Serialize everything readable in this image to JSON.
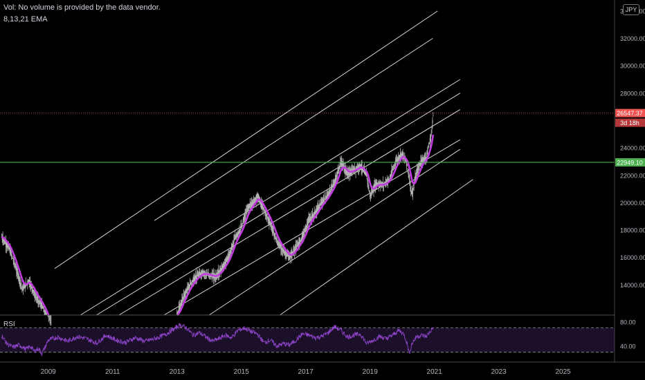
{
  "header": {
    "volume_note": "Vol: No volume is provided by the data vendor.",
    "ema_label": "8,13,21 EMA",
    "currency": "JPY"
  },
  "colors": {
    "price_candles": "#b4b4b4",
    "ema": "#c33ae0",
    "channel_lines": "#d8d8d8",
    "horizontal_line": "#4caf50",
    "current_price_tag": "#ef5350",
    "rsi_line": "#8e44c9",
    "rsi_band": "#1b0f29"
  },
  "chart_data": {
    "type": "line",
    "title": "",
    "xlabel": "",
    "ylabel": "",
    "x_ticks": [
      "2009",
      "2011",
      "2013",
      "2015",
      "2017",
      "2019",
      "2021",
      "2023",
      "2025"
    ],
    "x_range": [
      2007.5,
      2026.6
    ],
    "y_ticks": [
      14000,
      16000,
      18000,
      20000,
      22000,
      24000,
      26000,
      28000,
      30000,
      32000,
      34000
    ],
    "y_tick_labels": [
      "14000.00",
      "16000.00",
      "18000.00",
      "20000.00",
      "22000.00",
      "24000.00",
      "26000.00",
      "28000.00",
      "30000.00",
      "32000.00",
      "34000.00"
    ],
    "y_range": [
      11800,
      34800
    ],
    "grid": false,
    "series": [
      {
        "x": [
          2007.55,
          2007.8,
          2008.0,
          2008.2,
          2008.4,
          2008.6,
          2008.8,
          2008.95,
          2009.1,
          2013.0,
          2013.2,
          2013.4,
          2013.6,
          2013.8,
          2014.0,
          2014.2,
          2014.4,
          2014.6,
          2014.8,
          2015.0,
          2015.2,
          2015.4,
          2015.5,
          2015.7,
          2015.9,
          2016.1,
          2016.3,
          2016.5,
          2016.7,
          2016.9,
          2017.1,
          2017.3,
          2017.5,
          2017.7,
          2017.9,
          2018.1,
          2018.3,
          2018.5,
          2018.7,
          2018.9,
          2019.0,
          2019.2,
          2019.4,
          2019.6,
          2019.8,
          2020.0,
          2020.15,
          2020.3,
          2020.45,
          2020.6,
          2020.75,
          2020.9,
          2020.97
        ],
        "y": [
          17500,
          16600,
          15200,
          13700,
          14300,
          13200,
          12500,
          11700,
          10500,
          11800,
          13100,
          14000,
          14600,
          14900,
          14700,
          14600,
          15200,
          16000,
          17400,
          18200,
          19600,
          20100,
          20500,
          19500,
          18500,
          17200,
          16500,
          16000,
          16700,
          17500,
          18700,
          19300,
          20000,
          20600,
          21500,
          23000,
          22100,
          22400,
          22700,
          22000,
          20500,
          21400,
          21300,
          21700,
          23000,
          23600,
          22800,
          20600,
          22200,
          23100,
          23300,
          24900,
          26547
        ]
      }
    ],
    "annotations": [
      "26547.37",
      "3d 18h",
      "22949.10"
    ],
    "horizontal_line_value": 22949.1,
    "current_price": 26547.37,
    "current_countdown": "3d 18h"
  },
  "rsi": {
    "label": "RSI",
    "ticks": [
      80,
      40
    ],
    "tick_labels": [
      "80.00",
      "40.00"
    ],
    "levels": [
      70,
      30
    ],
    "range": [
      15,
      90
    ],
    "points": [
      [
        2007.55,
        58
      ],
      [
        2007.7,
        45
      ],
      [
        2007.9,
        38
      ],
      [
        2008.1,
        42
      ],
      [
        2008.3,
        35
      ],
      [
        2008.45,
        40
      ],
      [
        2008.55,
        32
      ],
      [
        2008.7,
        36
      ],
      [
        2008.8,
        28
      ],
      [
        2008.9,
        38
      ],
      [
        2009.0,
        50
      ],
      [
        2009.3,
        55
      ],
      [
        2009.6,
        48
      ],
      [
        2009.9,
        56
      ],
      [
        2010.2,
        52
      ],
      [
        2010.5,
        45
      ],
      [
        2010.8,
        58
      ],
      [
        2011.1,
        50
      ],
      [
        2011.4,
        46
      ],
      [
        2011.7,
        54
      ],
      [
        2012.0,
        48
      ],
      [
        2012.3,
        52
      ],
      [
        2012.6,
        58
      ],
      [
        2012.9,
        68
      ],
      [
        2013.1,
        75
      ],
      [
        2013.3,
        70
      ],
      [
        2013.5,
        58
      ],
      [
        2013.7,
        62
      ],
      [
        2013.9,
        55
      ],
      [
        2014.1,
        48
      ],
      [
        2014.3,
        52
      ],
      [
        2014.5,
        58
      ],
      [
        2014.7,
        54
      ],
      [
        2014.9,
        66
      ],
      [
        2015.1,
        70
      ],
      [
        2015.3,
        64
      ],
      [
        2015.5,
        60
      ],
      [
        2015.7,
        46
      ],
      [
        2015.9,
        50
      ],
      [
        2016.1,
        40
      ],
      [
        2016.3,
        44
      ],
      [
        2016.5,
        42
      ],
      [
        2016.7,
        50
      ],
      [
        2016.9,
        60
      ],
      [
        2017.1,
        58
      ],
      [
        2017.3,
        54
      ],
      [
        2017.5,
        56
      ],
      [
        2017.7,
        62
      ],
      [
        2017.9,
        72
      ],
      [
        2018.1,
        66
      ],
      [
        2018.3,
        55
      ],
      [
        2018.5,
        58
      ],
      [
        2018.7,
        60
      ],
      [
        2018.9,
        44
      ],
      [
        2019.1,
        50
      ],
      [
        2019.3,
        56
      ],
      [
        2019.5,
        52
      ],
      [
        2019.7,
        58
      ],
      [
        2019.9,
        66
      ],
      [
        2020.05,
        60
      ],
      [
        2020.15,
        45
      ],
      [
        2020.22,
        28
      ],
      [
        2020.3,
        44
      ],
      [
        2020.45,
        56
      ],
      [
        2020.6,
        58
      ],
      [
        2020.75,
        56
      ],
      [
        2020.9,
        66
      ],
      [
        2020.97,
        72
      ]
    ]
  }
}
